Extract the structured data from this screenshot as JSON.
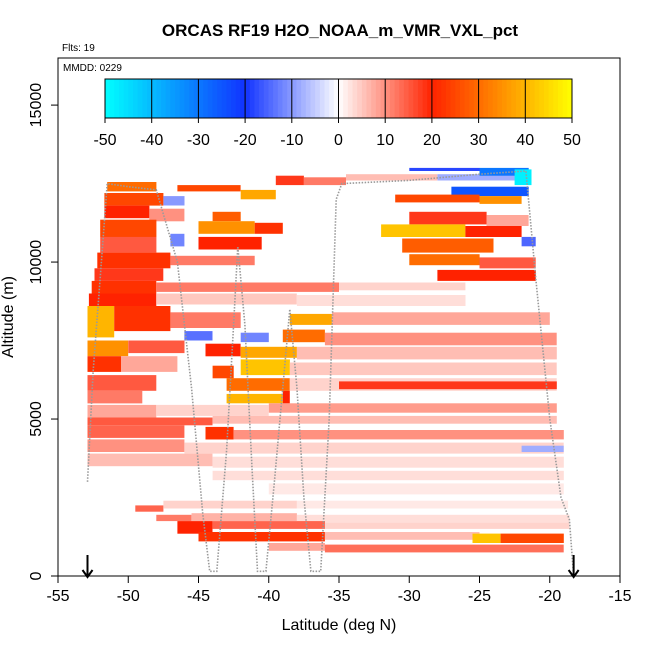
{
  "chart_data": {
    "type": "heatmap",
    "title": "ORCAS RF19 H2O_NOAA_m_VMR_VXL_pct",
    "annotations": {
      "flights": "Flts: 19",
      "mmdd": "MMDD: 0229"
    },
    "xlabel": "Latitude (deg N)",
    "ylabel": "Altitude (m)",
    "xlim": [
      -55,
      -15
    ],
    "ylim": [
      0,
      16500
    ],
    "x_ticks": [
      -55,
      -50,
      -45,
      -40,
      -35,
      -30,
      -25,
      -20,
      -15
    ],
    "y_ticks": [
      0,
      5000,
      10000,
      15000
    ],
    "grid": false,
    "colorbar": {
      "range": [
        -50,
        50
      ],
      "ticks": [
        -50,
        -40,
        -30,
        -20,
        -10,
        0,
        10,
        20,
        30,
        40,
        50
      ],
      "placement": "top-inside",
      "stops": [
        {
          "v": -50,
          "c": "#00FFFF"
        },
        {
          "v": -20,
          "c": "#1133FF"
        },
        {
          "v": 0,
          "c": "#FFFFFF"
        },
        {
          "v": 20,
          "c": "#FF2200"
        },
        {
          "v": 50,
          "c": "#FFFF00"
        }
      ]
    },
    "endpoint_markers_lat": [
      -52.9,
      -18.3
    ],
    "flight_track": [
      [
        -52.9,
        3000
      ],
      [
        -52.5,
        6500
      ],
      [
        -52.0,
        9500
      ],
      [
        -51.5,
        12500
      ],
      [
        -50.0,
        12400
      ],
      [
        -48.0,
        12300
      ],
      [
        -46.5,
        10000
      ],
      [
        -45.5,
        6000
      ],
      [
        -44.7,
        2000
      ],
      [
        -44.2,
        150
      ],
      [
        -43.7,
        150
      ],
      [
        -43.0,
        4000
      ],
      [
        -42.5,
        8000
      ],
      [
        -42.2,
        10500
      ],
      [
        -41.7,
        8000
      ],
      [
        -41.2,
        3500
      ],
      [
        -40.8,
        150
      ],
      [
        -40.2,
        150
      ],
      [
        -39.6,
        3000
      ],
      [
        -39.0,
        6000
      ],
      [
        -38.5,
        8500
      ],
      [
        -38.0,
        6000
      ],
      [
        -37.5,
        2500
      ],
      [
        -37.0,
        150
      ],
      [
        -36.3,
        150
      ],
      [
        -35.7,
        5000
      ],
      [
        -35.2,
        12000
      ],
      [
        -34.8,
        12500
      ],
      [
        -30.0,
        12600
      ],
      [
        -25.0,
        12800
      ],
      [
        -21.7,
        12900
      ],
      [
        -21.0,
        9500
      ],
      [
        -20.0,
        5000
      ],
      [
        -19.2,
        2500
      ],
      [
        -18.6,
        1800
      ],
      [
        -18.3,
        0
      ]
    ],
    "cells": [
      {
        "lat0": -51.5,
        "lat1": -48.0,
        "alt0": 12250,
        "alt1": 12550,
        "v": 30
      },
      {
        "lat0": -46.5,
        "lat1": -42.0,
        "alt0": 12250,
        "alt1": 12450,
        "v": 25
      },
      {
        "lat0": -42.0,
        "lat1": -39.5,
        "alt0": 12000,
        "alt1": 12300,
        "v": 38
      },
      {
        "lat0": -39.5,
        "lat1": -37.5,
        "alt0": 12450,
        "alt1": 12750,
        "v": 18
      },
      {
        "lat0": -37.5,
        "lat1": -34.5,
        "alt0": 12450,
        "alt1": 12700,
        "v": 12
      },
      {
        "lat0": -34.5,
        "lat1": -28.0,
        "alt0": 12600,
        "alt1": 12800,
        "v": 6
      },
      {
        "lat0": -28.0,
        "lat1": -22.0,
        "alt0": 12600,
        "alt1": 12800,
        "v": -8
      },
      {
        "lat0": -25.0,
        "lat1": -21.5,
        "alt0": 12750,
        "alt1": 13000,
        "v": -30
      },
      {
        "lat0": -22.5,
        "lat1": -21.3,
        "alt0": 12450,
        "alt1": 12950,
        "v": -48
      },
      {
        "lat0": -30.0,
        "lat1": -25.0,
        "alt0": 12900,
        "alt1": 13000,
        "v": -18
      },
      {
        "lat0": -27.0,
        "lat1": -21.5,
        "alt0": 12100,
        "alt1": 12400,
        "v": -25
      },
      {
        "lat0": -51.7,
        "lat1": -47.5,
        "alt0": 11800,
        "alt1": 12200,
        "v": 25
      },
      {
        "lat0": -47.5,
        "lat1": -46.0,
        "alt0": 11800,
        "alt1": 12100,
        "v": -10
      },
      {
        "lat0": -31.0,
        "lat1": -25.0,
        "alt0": 11900,
        "alt1": 12150,
        "v": 25
      },
      {
        "lat0": -25.0,
        "lat1": -22.0,
        "alt0": 11850,
        "alt1": 12100,
        "v": 35
      },
      {
        "lat0": -51.7,
        "lat1": -48.5,
        "alt0": 11400,
        "alt1": 11800,
        "v": 20
      },
      {
        "lat0": -48.5,
        "lat1": -46.0,
        "alt0": 11300,
        "alt1": 11700,
        "v": 10
      },
      {
        "lat0": -44.0,
        "lat1": -42.0,
        "alt0": 11300,
        "alt1": 11600,
        "v": 28
      },
      {
        "lat0": -30.0,
        "lat1": -24.5,
        "alt0": 11200,
        "alt1": 11600,
        "v": 18
      },
      {
        "lat0": -24.5,
        "lat1": -21.5,
        "alt0": 11150,
        "alt1": 11500,
        "v": 8
      },
      {
        "lat0": -52.0,
        "lat1": -48.0,
        "alt0": 10800,
        "alt1": 11350,
        "v": 25
      },
      {
        "lat0": -45.0,
        "lat1": -41.0,
        "alt0": 10900,
        "alt1": 11300,
        "v": 35
      },
      {
        "lat0": -41.0,
        "lat1": -39.0,
        "alt0": 10900,
        "alt1": 11250,
        "v": 22
      },
      {
        "lat0": -32.0,
        "lat1": -26.0,
        "alt0": 10800,
        "alt1": 11200,
        "v": 42
      },
      {
        "lat0": -26.0,
        "lat1": -22.0,
        "alt0": 10800,
        "alt1": 11150,
        "v": 20
      },
      {
        "lat0": -52.0,
        "lat1": -48.0,
        "alt0": 10300,
        "alt1": 10800,
        "v": 15
      },
      {
        "lat0": -47.0,
        "lat1": -46.0,
        "alt0": 10500,
        "alt1": 10900,
        "v": -12
      },
      {
        "lat0": -45.0,
        "lat1": -40.5,
        "alt0": 10400,
        "alt1": 10800,
        "v": 20
      },
      {
        "lat0": -30.5,
        "lat1": -24.0,
        "alt0": 10300,
        "alt1": 10750,
        "v": 28
      },
      {
        "lat0": -22.0,
        "lat1": -21.0,
        "alt0": 10500,
        "alt1": 10800,
        "v": -15
      },
      {
        "lat0": -52.2,
        "lat1": -47.0,
        "alt0": 9800,
        "alt1": 10300,
        "v": 22
      },
      {
        "lat0": -47.0,
        "lat1": -41.0,
        "alt0": 9900,
        "alt1": 10200,
        "v": 12
      },
      {
        "lat0": -30.0,
        "lat1": -25.0,
        "alt0": 9900,
        "alt1": 10250,
        "v": 30
      },
      {
        "lat0": -25.0,
        "lat1": -21.0,
        "alt0": 9800,
        "alt1": 10150,
        "v": 15
      },
      {
        "lat0": -52.4,
        "lat1": -47.5,
        "alt0": 9400,
        "alt1": 9800,
        "v": 18
      },
      {
        "lat0": -28.0,
        "lat1": -21.0,
        "alt0": 9400,
        "alt1": 9750,
        "v": 20
      },
      {
        "lat0": -52.6,
        "lat1": -48.0,
        "alt0": 9000,
        "alt1": 9400,
        "v": 22
      },
      {
        "lat0": -48.0,
        "lat1": -35.0,
        "alt0": 9050,
        "alt1": 9350,
        "v": 12
      },
      {
        "lat0": -35.0,
        "lat1": -26.0,
        "alt0": 9100,
        "alt1": 9350,
        "v": 4
      },
      {
        "lat0": -52.8,
        "lat1": -48.0,
        "alt0": 8600,
        "alt1": 9000,
        "v": 20
      },
      {
        "lat0": -48.0,
        "lat1": -38.0,
        "alt0": 8650,
        "alt1": 9000,
        "v": 5
      },
      {
        "lat0": -38.0,
        "lat1": -26.0,
        "alt0": 8600,
        "alt1": 8950,
        "v": 3
      },
      {
        "lat0": -52.9,
        "lat1": -51.0,
        "alt0": 7600,
        "alt1": 8600,
        "v": 40
      },
      {
        "lat0": -51.0,
        "lat1": -47.0,
        "alt0": 7800,
        "alt1": 8600,
        "v": 22
      },
      {
        "lat0": -47.0,
        "lat1": -42.0,
        "alt0": 7900,
        "alt1": 8400,
        "v": 12
      },
      {
        "lat0": -38.5,
        "lat1": -35.5,
        "alt0": 8000,
        "alt1": 8350,
        "v": 38
      },
      {
        "lat0": -35.5,
        "lat1": -20.0,
        "alt0": 8000,
        "alt1": 8400,
        "v": 8
      },
      {
        "lat0": -46.0,
        "lat1": -44.0,
        "alt0": 7500,
        "alt1": 7800,
        "v": -14
      },
      {
        "lat0": -42.0,
        "lat1": -40.0,
        "alt0": 7450,
        "alt1": 7750,
        "v": -12
      },
      {
        "lat0": -39.0,
        "lat1": -36.0,
        "alt0": 7450,
        "alt1": 7850,
        "v": 30
      },
      {
        "lat0": -36.0,
        "lat1": -19.5,
        "alt0": 7350,
        "alt1": 7750,
        "v": 10
      },
      {
        "lat0": -52.9,
        "lat1": -50.0,
        "alt0": 7000,
        "alt1": 7500,
        "v": 35
      },
      {
        "lat0": -50.0,
        "lat1": -46.0,
        "alt0": 7100,
        "alt1": 7500,
        "v": 15
      },
      {
        "lat0": -44.5,
        "lat1": -42.0,
        "alt0": 7000,
        "alt1": 7400,
        "v": 20
      },
      {
        "lat0": -42.0,
        "lat1": -38.0,
        "alt0": 6950,
        "alt1": 7300,
        "v": 38
      },
      {
        "lat0": -38.0,
        "lat1": -19.5,
        "alt0": 6900,
        "alt1": 7300,
        "v": 6
      },
      {
        "lat0": -52.9,
        "lat1": -50.5,
        "alt0": 6500,
        "alt1": 7000,
        "v": 22
      },
      {
        "lat0": -50.5,
        "lat1": -46.5,
        "alt0": 6500,
        "alt1": 7000,
        "v": 8
      },
      {
        "lat0": -44.0,
        "lat1": -42.5,
        "alt0": 6300,
        "alt1": 6700,
        "v": 25
      },
      {
        "lat0": -42.0,
        "lat1": -38.5,
        "alt0": 6400,
        "alt1": 6900,
        "v": 42
      },
      {
        "lat0": -38.5,
        "lat1": -19.5,
        "alt0": 6400,
        "alt1": 6800,
        "v": 5
      },
      {
        "lat0": -52.9,
        "lat1": -48.0,
        "alt0": 5900,
        "alt1": 6400,
        "v": 15
      },
      {
        "lat0": -43.0,
        "lat1": -38.5,
        "alt0": 5900,
        "alt1": 6300,
        "v": 30
      },
      {
        "lat0": -38.5,
        "lat1": -19.5,
        "alt0": 5900,
        "alt1": 6300,
        "v": 4
      },
      {
        "lat0": -52.9,
        "lat1": -49.0,
        "alt0": 5500,
        "alt1": 5900,
        "v": 12
      },
      {
        "lat0": -43.0,
        "lat1": -39.0,
        "alt0": 5500,
        "alt1": 5800,
        "v": 40
      },
      {
        "lat0": -39.0,
        "lat1": -38.5,
        "alt0": 5500,
        "alt1": 5900,
        "v": 20
      },
      {
        "lat0": -35.0,
        "lat1": -19.5,
        "alt0": 5950,
        "alt1": 6200,
        "v": 18
      },
      {
        "lat0": -52.9,
        "lat1": -48.0,
        "alt0": 5050,
        "alt1": 5450,
        "v": 8
      },
      {
        "lat0": -48.0,
        "lat1": -40.0,
        "alt0": 5100,
        "alt1": 5450,
        "v": 4
      },
      {
        "lat0": -40.0,
        "lat1": -19.5,
        "alt0": 5200,
        "alt1": 5500,
        "v": 9
      },
      {
        "lat0": -52.9,
        "lat1": -44.0,
        "alt0": 4800,
        "alt1": 5050,
        "v": 15
      },
      {
        "lat0": -44.0,
        "lat1": -19.5,
        "alt0": 4850,
        "alt1": 5100,
        "v": 6
      },
      {
        "lat0": -52.9,
        "lat1": -46.0,
        "alt0": 4400,
        "alt1": 4800,
        "v": 14
      },
      {
        "lat0": -44.5,
        "lat1": -42.5,
        "alt0": 4350,
        "alt1": 4750,
        "v": 22
      },
      {
        "lat0": -42.5,
        "lat1": -19.0,
        "alt0": 4350,
        "alt1": 4650,
        "v": 10
      },
      {
        "lat0": -52.9,
        "lat1": -46.0,
        "alt0": 3950,
        "alt1": 4350,
        "v": 10
      },
      {
        "lat0": -46.0,
        "lat1": -19.0,
        "alt0": 3900,
        "alt1": 4250,
        "v": 4
      },
      {
        "lat0": -22.0,
        "lat1": -19.0,
        "alt0": 3950,
        "alt1": 4150,
        "v": -8
      },
      {
        "lat0": -52.9,
        "lat1": -44.0,
        "alt0": 3500,
        "alt1": 3900,
        "v": 6
      },
      {
        "lat0": -44.0,
        "lat1": -19.0,
        "alt0": 3450,
        "alt1": 3800,
        "v": 3
      },
      {
        "lat0": -44.0,
        "lat1": -19.0,
        "alt0": 3050,
        "alt1": 3350,
        "v": 3
      },
      {
        "lat0": -40.0,
        "lat1": -19.0,
        "alt0": 2600,
        "alt1": 2950,
        "v": 2
      },
      {
        "lat0": -49.5,
        "lat1": -47.5,
        "alt0": 2050,
        "alt1": 2250,
        "v": 14
      },
      {
        "lat0": -47.5,
        "lat1": -38.0,
        "alt0": 2150,
        "alt1": 2400,
        "v": 4
      },
      {
        "lat0": -38.0,
        "lat1": -18.7,
        "alt0": 2150,
        "alt1": 2400,
        "v": 2
      },
      {
        "lat0": -48.0,
        "lat1": -45.5,
        "alt0": 1750,
        "alt1": 1950,
        "v": 12
      },
      {
        "lat0": -45.5,
        "lat1": -38.0,
        "alt0": 1750,
        "alt1": 2000,
        "v": 7
      },
      {
        "lat0": -38.0,
        "lat1": -18.6,
        "alt0": 1700,
        "alt1": 1950,
        "v": 3
      },
      {
        "lat0": -46.5,
        "lat1": -44.0,
        "alt0": 1350,
        "alt1": 1750,
        "v": 20
      },
      {
        "lat0": -44.0,
        "lat1": -36.0,
        "alt0": 1500,
        "alt1": 1750,
        "v": 14
      },
      {
        "lat0": -36.0,
        "lat1": -18.6,
        "alt0": 1500,
        "alt1": 1700,
        "v": 4
      },
      {
        "lat0": -45.0,
        "lat1": -36.0,
        "alt0": 1100,
        "alt1": 1400,
        "v": 22
      },
      {
        "lat0": -36.0,
        "lat1": -25.0,
        "alt0": 1150,
        "alt1": 1400,
        "v": 6
      },
      {
        "lat0": -25.5,
        "lat1": -23.5,
        "alt0": 1050,
        "alt1": 1350,
        "v": 42
      },
      {
        "lat0": -23.5,
        "lat1": -19.0,
        "alt0": 1050,
        "alt1": 1350,
        "v": 25
      },
      {
        "lat0": -40.0,
        "lat1": -36.0,
        "alt0": 800,
        "alt1": 1050,
        "v": 8
      },
      {
        "lat0": -36.0,
        "lat1": -19.0,
        "alt0": 750,
        "alt1": 1000,
        "v": 13
      }
    ]
  }
}
